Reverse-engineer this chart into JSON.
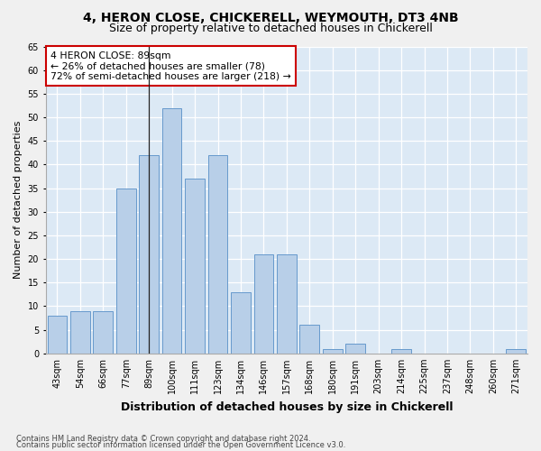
{
  "title1": "4, HERON CLOSE, CHICKERELL, WEYMOUTH, DT3 4NB",
  "title2": "Size of property relative to detached houses in Chickerell",
  "xlabel": "Distribution of detached houses by size in Chickerell",
  "ylabel": "Number of detached properties",
  "categories": [
    "43sqm",
    "54sqm",
    "66sqm",
    "77sqm",
    "89sqm",
    "100sqm",
    "111sqm",
    "123sqm",
    "134sqm",
    "146sqm",
    "157sqm",
    "168sqm",
    "180sqm",
    "191sqm",
    "203sqm",
    "214sqm",
    "225sqm",
    "237sqm",
    "248sqm",
    "260sqm",
    "271sqm"
  ],
  "values": [
    8,
    9,
    9,
    35,
    42,
    52,
    37,
    42,
    13,
    21,
    21,
    6,
    1,
    2,
    0,
    1,
    0,
    0,
    0,
    0,
    1
  ],
  "bar_color": "#b8cfe8",
  "bar_edge_color": "#6699cc",
  "vline_index": 4,
  "annotation_text": "4 HERON CLOSE: 89sqm\n← 26% of detached houses are smaller (78)\n72% of semi-detached houses are larger (218) →",
  "annotation_box_color": "#ffffff",
  "annotation_box_edge": "#cc0000",
  "ylim": [
    0,
    65
  ],
  "yticks": [
    0,
    5,
    10,
    15,
    20,
    25,
    30,
    35,
    40,
    45,
    50,
    55,
    60,
    65
  ],
  "footer1": "Contains HM Land Registry data © Crown copyright and database right 2024.",
  "footer2": "Contains public sector information licensed under the Open Government Licence v3.0.",
  "bg_color": "#dce9f5",
  "fig_bg_color": "#f0f0f0",
  "grid_color": "#ffffff",
  "title_fontsize": 10,
  "subtitle_fontsize": 9,
  "tick_fontsize": 7,
  "ylabel_fontsize": 8,
  "xlabel_fontsize": 9
}
